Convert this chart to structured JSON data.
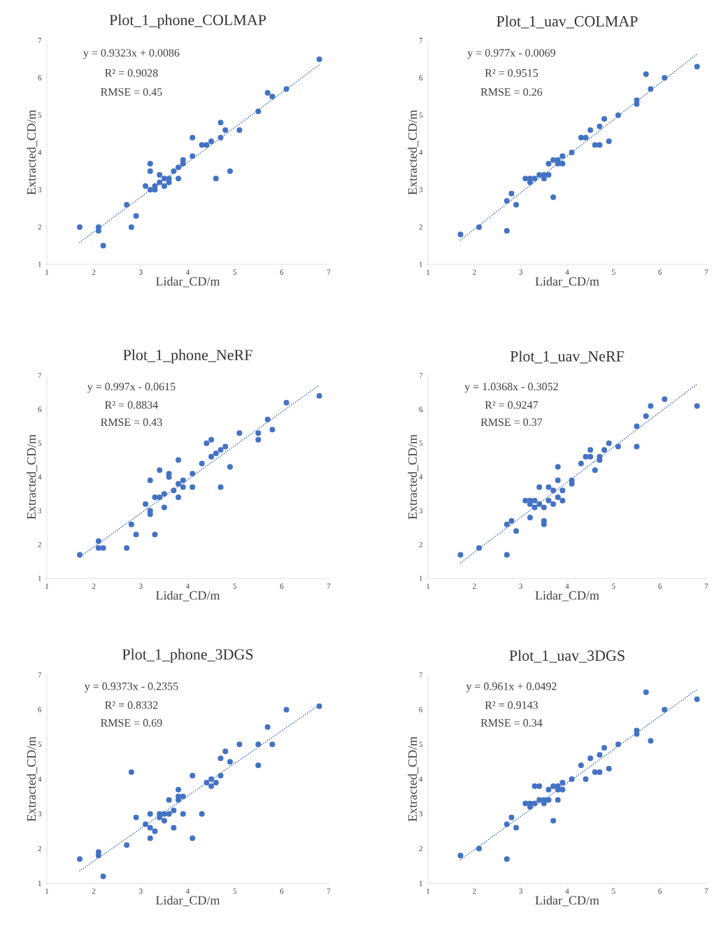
{
  "chart_data": [
    {
      "type": "scatter",
      "title": "Plot_1_phone_COLMAP",
      "xlabel": "Lidar_CD/m",
      "ylabel": "Extracted_CD/m",
      "xlim": [
        1,
        7
      ],
      "ylim": [
        1,
        7
      ],
      "xticks": [
        1,
        2,
        3,
        4,
        5,
        6,
        7
      ],
      "yticks": [
        1,
        2,
        3,
        4,
        5,
        6,
        7
      ],
      "annotations": [
        "y = 0.9323x  + 0.0086",
        "R² = 0.9028",
        "RMSE = 0.45"
      ],
      "series": [
        {
          "marker": "circle",
          "color": "#4472c4",
          "x": [
            1.7,
            2.1,
            2.1,
            2.2,
            2.7,
            2.8,
            2.9,
            3.1,
            3.2,
            3.2,
            3.2,
            3.3,
            3.3,
            3.4,
            3.4,
            3.5,
            3.5,
            3.6,
            3.6,
            3.7,
            3.8,
            3.8,
            3.9,
            3.9,
            4.1,
            4.1,
            4.3,
            4.4,
            4.5,
            4.6,
            4.7,
            4.7,
            4.8,
            4.9,
            5.1,
            5.5,
            5.7,
            5.8,
            6.1,
            6.8
          ],
          "values": [
            2.0,
            2.0,
            1.9,
            1.5,
            2.6,
            2.0,
            2.3,
            3.1,
            3.7,
            3.5,
            3.0,
            3.1,
            3.0,
            3.4,
            3.2,
            3.3,
            3.1,
            3.3,
            3.2,
            3.5,
            3.6,
            3.3,
            3.7,
            3.8,
            4.4,
            3.9,
            4.2,
            4.2,
            4.3,
            3.3,
            4.8,
            4.4,
            4.6,
            3.5,
            4.6,
            5.1,
            5.6,
            5.5,
            5.7,
            6.5
          ]
        },
        {
          "type": "line",
          "marker": "none",
          "line_style": "dotted",
          "color": "#4472c4",
          "x": [
            1.7,
            6.8
          ],
          "values": [
            1.59,
            6.35
          ]
        }
      ]
    },
    {
      "type": "scatter",
      "title": "Plot_1_uav_COLMAP",
      "xlabel": "Lidar_CD/m",
      "ylabel": "Extracted_CD/m",
      "xlim": [
        1,
        7
      ],
      "ylim": [
        1,
        7
      ],
      "xticks": [
        1,
        2,
        3,
        4,
        5,
        6,
        7
      ],
      "yticks": [
        1,
        2,
        3,
        4,
        5,
        6,
        7
      ],
      "annotations": [
        "y = 0.977x  - 0.0069",
        "R² = 0.9515",
        "RMSE = 0.26"
      ],
      "series": [
        {
          "marker": "circle",
          "color": "#4472c4",
          "x": [
            1.7,
            2.1,
            2.7,
            2.7,
            2.8,
            2.9,
            3.1,
            3.2,
            3.2,
            3.3,
            3.4,
            3.5,
            3.5,
            3.6,
            3.6,
            3.7,
            3.7,
            3.8,
            3.8,
            3.9,
            3.9,
            4.1,
            4.3,
            4.4,
            4.5,
            4.6,
            4.7,
            4.7,
            4.8,
            4.9,
            5.1,
            5.5,
            5.5,
            5.7,
            5.8,
            6.1,
            6.8
          ],
          "values": [
            1.8,
            2.0,
            1.9,
            2.7,
            2.9,
            2.6,
            3.3,
            3.2,
            3.3,
            3.3,
            3.4,
            3.3,
            3.4,
            3.4,
            3.7,
            2.8,
            3.8,
            3.8,
            3.7,
            3.9,
            3.7,
            4.0,
            4.4,
            4.4,
            4.6,
            4.2,
            4.2,
            4.7,
            4.9,
            4.3,
            5.0,
            5.4,
            5.3,
            6.1,
            5.7,
            6.0,
            6.3
          ]
        },
        {
          "type": "line",
          "marker": "none",
          "line_style": "dotted",
          "color": "#4472c4",
          "x": [
            1.7,
            6.8
          ],
          "values": [
            1.65,
            6.64
          ]
        }
      ]
    },
    {
      "type": "scatter",
      "title": "Plot_1_phone_NeRF",
      "xlabel": "Lidar_CD/m",
      "ylabel": "Extracted_CD/m",
      "xlim": [
        1,
        7
      ],
      "ylim": [
        1,
        7
      ],
      "xticks": [
        1,
        2,
        3,
        4,
        5,
        6,
        7
      ],
      "yticks": [
        1,
        2,
        3,
        4,
        5,
        6,
        7
      ],
      "annotations": [
        "y = 0.997x  - 0.0615",
        "R² = 0.8834",
        "RMSE = 0.43"
      ],
      "series": [
        {
          "marker": "circle",
          "color": "#4472c4",
          "x": [
            1.7,
            2.1,
            2.1,
            2.2,
            2.7,
            2.8,
            2.9,
            3.1,
            3.2,
            3.2,
            3.2,
            3.3,
            3.3,
            3.4,
            3.4,
            3.5,
            3.5,
            3.6,
            3.6,
            3.7,
            3.8,
            3.8,
            3.8,
            3.9,
            3.9,
            4.1,
            4.1,
            4.3,
            4.4,
            4.5,
            4.5,
            4.6,
            4.7,
            4.7,
            4.8,
            4.9,
            5.1,
            5.5,
            5.5,
            5.7,
            5.8,
            6.1,
            6.8
          ],
          "values": [
            1.7,
            2.1,
            1.9,
            1.9,
            1.9,
            2.6,
            2.3,
            3.2,
            3.9,
            3.0,
            2.9,
            3.4,
            2.3,
            4.2,
            3.4,
            3.5,
            3.1,
            4.1,
            4.0,
            3.6,
            4.5,
            3.8,
            3.4,
            3.9,
            3.7,
            4.1,
            3.7,
            4.4,
            5.0,
            5.1,
            4.6,
            4.7,
            4.8,
            3.7,
            4.9,
            4.3,
            5.3,
            5.3,
            5.1,
            5.7,
            5.4,
            6.2,
            6.4
          ]
        },
        {
          "type": "line",
          "marker": "none",
          "line_style": "dotted",
          "color": "#4472c4",
          "x": [
            1.7,
            6.8
          ],
          "values": [
            1.63,
            6.72
          ]
        }
      ]
    },
    {
      "type": "scatter",
      "title": "Plot_1_uav_NeRF",
      "xlabel": "Lidar_CD/m",
      "ylabel": "Extracted_CD/m",
      "xlim": [
        1,
        7
      ],
      "ylim": [
        1,
        7
      ],
      "xticks": [
        1,
        2,
        3,
        4,
        5,
        6,
        7
      ],
      "yticks": [
        1,
        2,
        3,
        4,
        5,
        6,
        7
      ],
      "annotations": [
        "y = 1.0368x  - 0.3052",
        "R² = 0.9247",
        "RMSE = 0.37"
      ],
      "series": [
        {
          "marker": "circle",
          "color": "#4472c4",
          "x": [
            1.7,
            2.1,
            2.7,
            2.7,
            2.8,
            2.9,
            3.1,
            3.2,
            3.2,
            3.2,
            3.3,
            3.3,
            3.4,
            3.4,
            3.5,
            3.5,
            3.5,
            3.6,
            3.6,
            3.7,
            3.7,
            3.8,
            3.8,
            3.8,
            3.9,
            3.9,
            4.1,
            4.1,
            4.3,
            4.4,
            4.5,
            4.5,
            4.6,
            4.7,
            4.7,
            4.8,
            4.9,
            5.1,
            5.5,
            5.5,
            5.7,
            5.8,
            6.1,
            6.8
          ],
          "values": [
            1.7,
            1.9,
            1.7,
            2.6,
            2.7,
            2.4,
            3.3,
            3.3,
            3.2,
            2.8,
            3.3,
            3.1,
            3.7,
            3.2,
            3.1,
            2.7,
            2.6,
            3.7,
            3.3,
            3.6,
            3.2,
            4.3,
            3.9,
            3.4,
            3.6,
            3.3,
            3.9,
            3.8,
            4.4,
            4.6,
            4.8,
            4.6,
            4.2,
            4.6,
            4.5,
            4.8,
            5.0,
            4.9,
            5.5,
            4.9,
            5.8,
            6.1,
            6.3,
            6.1
          ]
        },
        {
          "type": "line",
          "marker": "none",
          "line_style": "dotted",
          "color": "#4472c4",
          "x": [
            1.7,
            6.8
          ],
          "values": [
            1.46,
            6.75
          ]
        }
      ]
    },
    {
      "type": "scatter",
      "title": "Plot_1_phone_3DGS",
      "xlabel": "Lidar_CD/m",
      "ylabel": "Extracted_CD/m",
      "xlim": [
        1,
        7
      ],
      "ylim": [
        1,
        7
      ],
      "xticks": [
        1,
        2,
        3,
        4,
        5,
        6,
        7
      ],
      "yticks": [
        1,
        2,
        3,
        4,
        5,
        6,
        7
      ],
      "annotations": [
        "y = 0.9373x  - 0.2355",
        "R² = 0.8332",
        "RMSE = 0.69"
      ],
      "series": [
        {
          "marker": "circle",
          "color": "#4472c4",
          "x": [
            1.7,
            2.1,
            2.1,
            2.2,
            2.7,
            2.8,
            2.9,
            3.1,
            3.2,
            3.2,
            3.2,
            3.3,
            3.4,
            3.4,
            3.5,
            3.5,
            3.6,
            3.6,
            3.7,
            3.7,
            3.8,
            3.8,
            3.8,
            3.9,
            3.9,
            4.1,
            4.1,
            4.3,
            4.4,
            4.5,
            4.5,
            4.6,
            4.7,
            4.7,
            4.8,
            4.9,
            5.1,
            5.5,
            5.5,
            5.7,
            5.8,
            6.1,
            6.8
          ],
          "values": [
            1.7,
            1.9,
            1.8,
            1.2,
            2.1,
            4.2,
            2.9,
            2.7,
            3.0,
            2.6,
            2.3,
            2.5,
            3.0,
            2.9,
            3.0,
            2.8,
            3.4,
            3.0,
            3.1,
            2.6,
            3.7,
            3.5,
            3.4,
            3.5,
            3.0,
            4.1,
            2.3,
            3.0,
            3.9,
            4.0,
            3.8,
            3.9,
            4.1,
            4.6,
            4.8,
            4.5,
            5.0,
            5.0,
            4.4,
            5.5,
            5.0,
            6.0,
            6.1
          ]
        },
        {
          "type": "line",
          "marker": "none",
          "line_style": "dotted",
          "color": "#4472c4",
          "x": [
            1.7,
            6.8
          ],
          "values": [
            1.36,
            6.14
          ]
        }
      ]
    },
    {
      "type": "scatter",
      "title": "Plot_1_uav_3DGS",
      "xlabel": "Lidar_CD/m",
      "ylabel": "Extracted_CD/m",
      "xlim": [
        1,
        7
      ],
      "ylim": [
        1,
        7
      ],
      "xticks": [
        1,
        2,
        3,
        4,
        5,
        6,
        7
      ],
      "yticks": [
        1,
        2,
        3,
        4,
        5,
        6,
        7
      ],
      "annotations": [
        "y = 0.961x + 0.0492",
        "R² = 0.9143",
        "RMSE = 0.34"
      ],
      "series": [
        {
          "marker": "circle",
          "color": "#4472c4",
          "x": [
            1.7,
            2.1,
            2.7,
            2.7,
            2.8,
            2.9,
            3.1,
            3.2,
            3.2,
            3.3,
            3.3,
            3.4,
            3.4,
            3.5,
            3.5,
            3.6,
            3.6,
            3.7,
            3.7,
            3.8,
            3.8,
            3.8,
            3.9,
            3.9,
            4.1,
            4.3,
            4.4,
            4.5,
            4.6,
            4.7,
            4.7,
            4.8,
            4.9,
            5.1,
            5.5,
            5.5,
            5.7,
            5.8,
            6.1,
            6.8
          ],
          "values": [
            1.8,
            2.0,
            1.7,
            2.7,
            2.9,
            2.6,
            3.3,
            3.3,
            3.2,
            3.8,
            3.3,
            3.8,
            3.4,
            3.4,
            3.3,
            3.7,
            3.4,
            3.8,
            2.8,
            3.8,
            3.7,
            3.4,
            3.9,
            3.7,
            4.0,
            4.4,
            4.0,
            4.6,
            4.2,
            4.2,
            4.7,
            4.9,
            4.3,
            5.0,
            5.4,
            5.3,
            6.5,
            5.1,
            6.0,
            6.3
          ]
        },
        {
          "type": "line",
          "marker": "none",
          "line_style": "dotted",
          "color": "#4472c4",
          "x": [
            1.7,
            6.8
          ],
          "values": [
            1.68,
            6.58
          ]
        }
      ]
    }
  ]
}
